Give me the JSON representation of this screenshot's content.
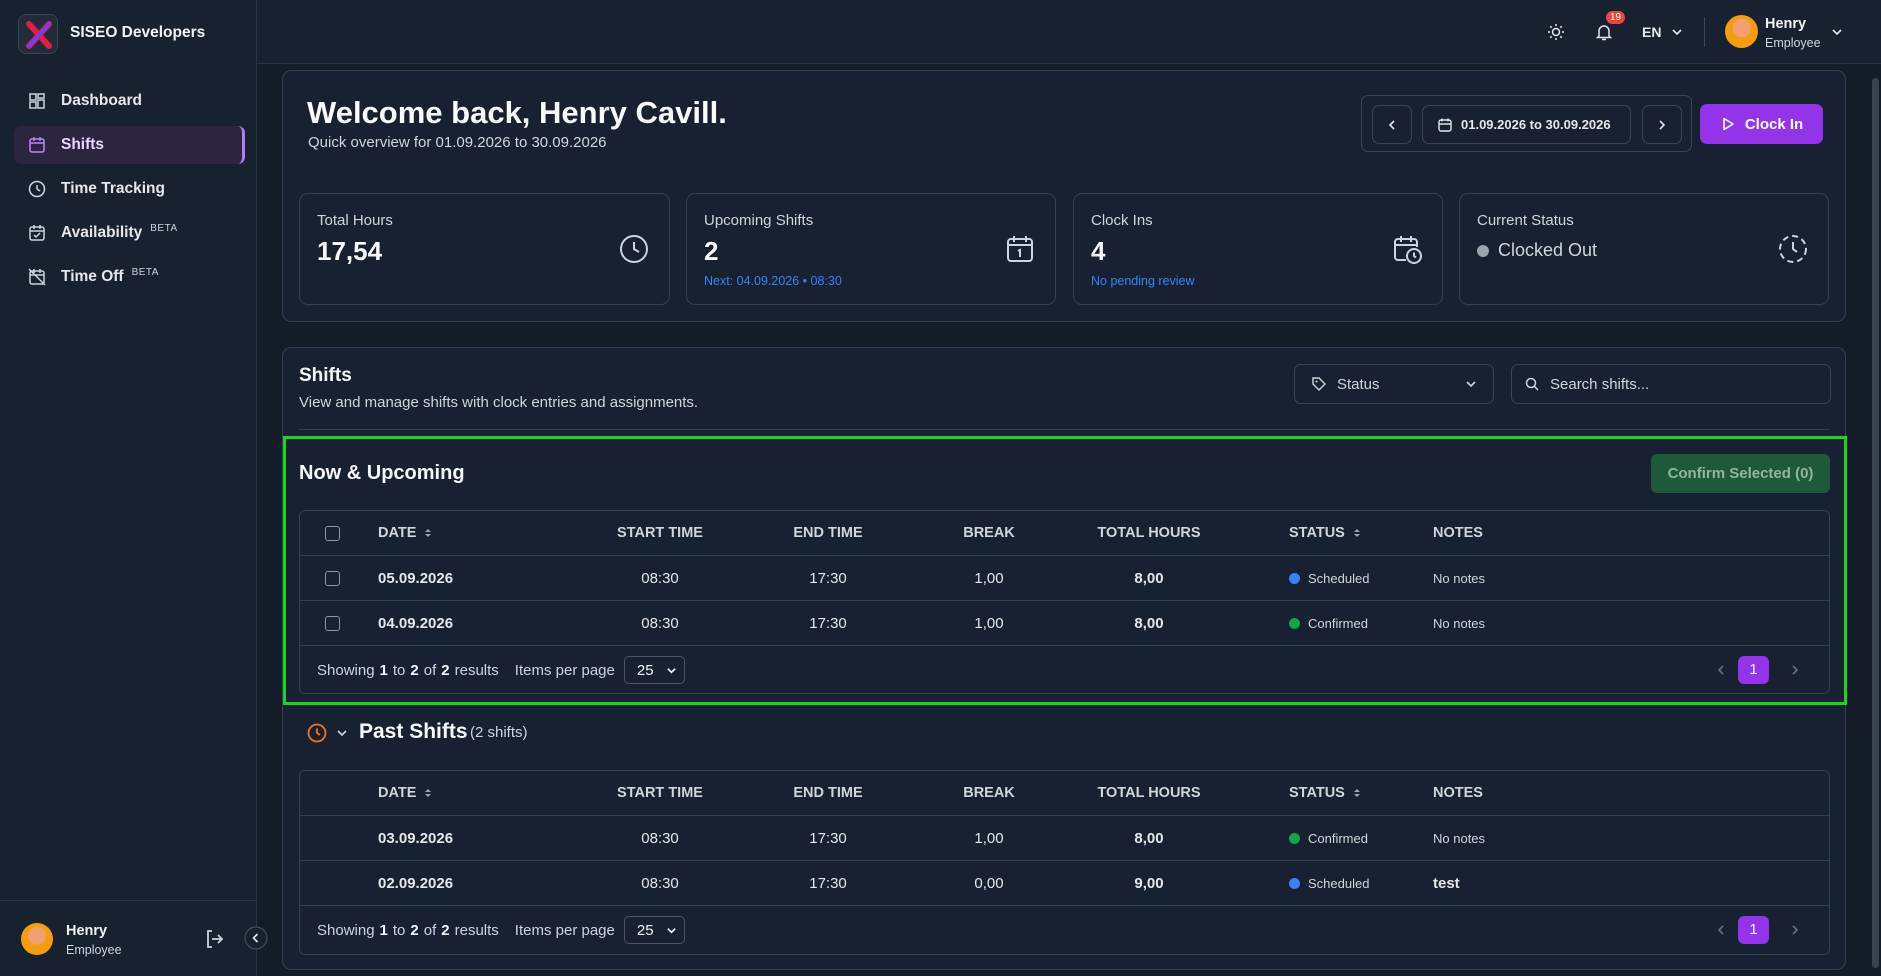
{
  "sidebar": {
    "brand": "SISEO Developers",
    "nav": [
      {
        "label": "Dashboard"
      },
      {
        "label": "Shifts"
      },
      {
        "label": "Time Tracking"
      },
      {
        "label": "Availability",
        "badge": "BETA"
      },
      {
        "label": "Time Off",
        "badge": "BETA"
      }
    ],
    "user": {
      "name": "Henry",
      "role": "Employee"
    }
  },
  "topbar": {
    "notifications": "19",
    "language": "EN",
    "user": {
      "name": "Henry",
      "role": "Employee"
    }
  },
  "header": {
    "title": "Welcome back, Henry Cavill.",
    "subtitle": "Quick overview for 01.09.2026 to 30.09.2026",
    "date_range": "01.09.2026 to 30.09.2026",
    "clock_in": "Clock In"
  },
  "stats": [
    {
      "label": "Total Hours",
      "value": "17,54"
    },
    {
      "label": "Upcoming Shifts",
      "value": "2",
      "note": "Next: 04.09.2026 • 08:30"
    },
    {
      "label": "Clock Ins",
      "value": "4",
      "note": "No pending review"
    },
    {
      "label": "Current Status",
      "value": "Clocked Out"
    }
  ],
  "shifts": {
    "title": "Shifts",
    "subtitle": "View and manage shifts with clock entries and assignments.",
    "status_filter": "Status",
    "search_placeholder": "Search shifts..."
  },
  "upcoming": {
    "title": "Now & Upcoming",
    "confirm_button": "Confirm Selected (0)",
    "table": {
      "columns": [
        "DATE",
        "START TIME",
        "END TIME",
        "BREAK",
        "TOTAL HOURS",
        "STATUS",
        "NOTES"
      ],
      "rows": [
        {
          "date": "05.09.2026",
          "start": "08:30",
          "end": "17:30",
          "break": "1,00",
          "total": "8,00",
          "status": "Scheduled",
          "status_color": "#3b82f6",
          "notes": "No notes"
        },
        {
          "date": "04.09.2026",
          "start": "08:30",
          "end": "17:30",
          "break": "1,00",
          "total": "8,00",
          "status": "Confirmed",
          "status_color": "#16a34a",
          "notes": "No notes"
        }
      ],
      "pagination": {
        "showing": "Showing",
        "from": "1",
        "to_word": "to",
        "to": "2",
        "of_word": "of",
        "total": "2",
        "results": "results",
        "items_per_page": "Items per page",
        "per_page": "25",
        "page": "1"
      }
    }
  },
  "past": {
    "title": "Past Shifts",
    "count": "(2 shifts)",
    "table": {
      "columns": [
        "DATE",
        "START TIME",
        "END TIME",
        "BREAK",
        "TOTAL HOURS",
        "STATUS",
        "NOTES"
      ],
      "rows": [
        {
          "date": "03.09.2026",
          "start": "08:30",
          "end": "17:30",
          "break": "1,00",
          "total": "8,00",
          "status": "Confirmed",
          "status_color": "#16a34a",
          "notes": "No notes"
        },
        {
          "date": "02.09.2026",
          "start": "08:30",
          "end": "17:30",
          "break": "0,00",
          "total": "9,00",
          "status": "Scheduled",
          "status_color": "#3b82f6",
          "notes": "test"
        }
      ],
      "pagination": {
        "showing": "Showing",
        "from": "1",
        "to_word": "to",
        "to": "2",
        "of_word": "of",
        "total": "2",
        "results": "results",
        "items_per_page": "Items per page",
        "per_page": "25",
        "page": "1"
      }
    }
  }
}
